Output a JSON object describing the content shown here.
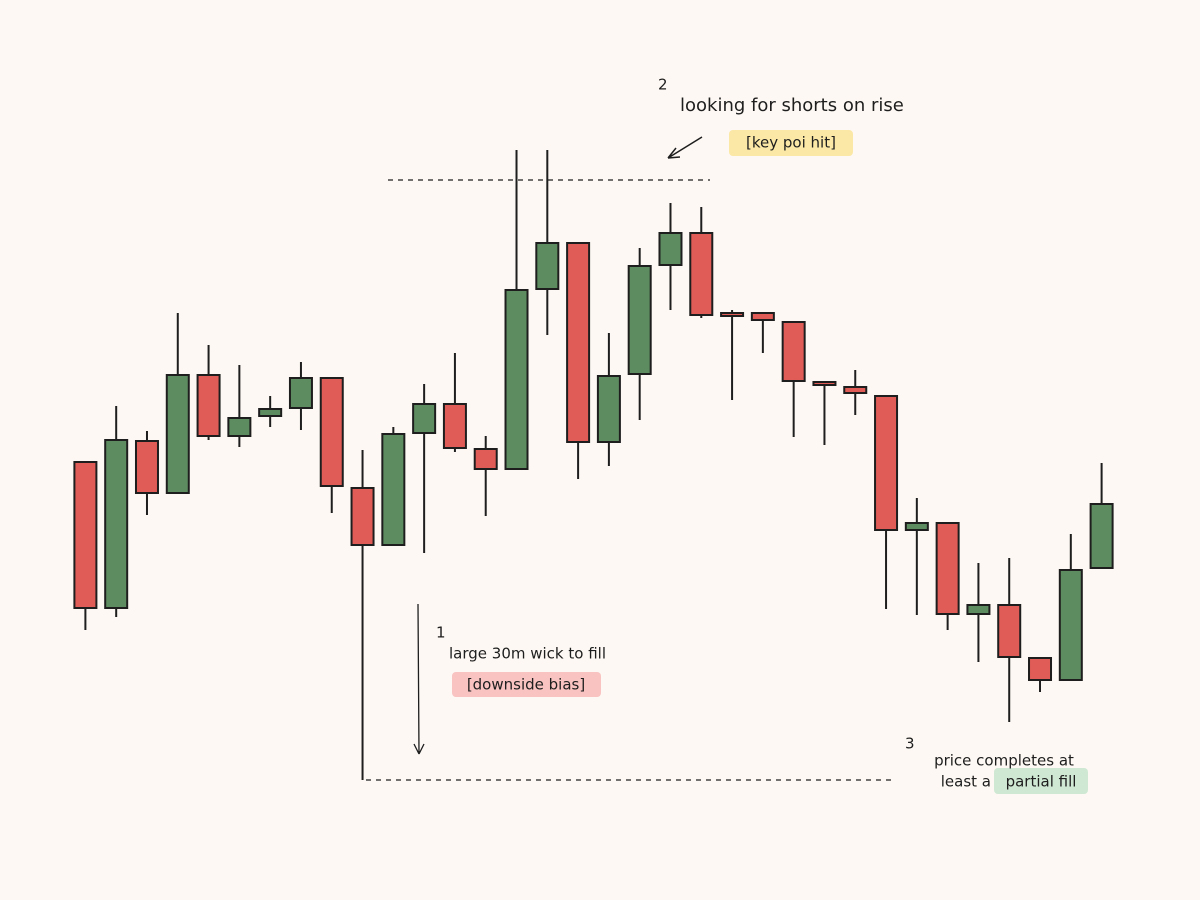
{
  "chart_data": {
    "type": "candlestick",
    "categories": [
      null,
      null,
      null,
      null,
      null,
      null,
      null,
      null,
      null,
      null,
      null,
      null,
      null,
      null,
      null,
      null,
      null,
      null,
      null,
      null,
      null,
      null,
      null,
      null,
      null,
      null,
      null,
      null,
      null,
      null,
      null,
      null,
      null,
      null
    ],
    "open": [
      438,
      292,
      459,
      407,
      525,
      464,
      484,
      492,
      522,
      412,
      355,
      467,
      496,
      451,
      431,
      611,
      657,
      458,
      526,
      635,
      667,
      587,
      587,
      578,
      518,
      513,
      504,
      370,
      377,
      286,
      295,
      242,
      220,
      332
    ],
    "high": [
      438,
      494,
      469,
      587,
      555,
      535,
      504,
      538,
      522,
      450,
      473,
      516,
      547,
      464,
      750,
      750,
      657,
      567,
      652,
      697,
      693,
      590,
      587,
      578,
      518,
      530,
      504,
      402,
      377,
      337,
      342,
      242,
      366,
      437
    ],
    "low": [
      270,
      283,
      385,
      407,
      460,
      453,
      473,
      470,
      387,
      120,
      355,
      347,
      448,
      384,
      431,
      565,
      421,
      434,
      480,
      590,
      582,
      500,
      547,
      463,
      455,
      485,
      291,
      285,
      270,
      238,
      178,
      208,
      220,
      332
    ],
    "close": [
      292,
      460,
      407,
      525,
      464,
      482,
      491,
      522,
      414,
      355,
      466,
      496,
      452,
      431,
      610,
      657,
      458,
      524,
      634,
      667,
      585,
      584,
      580,
      519,
      515,
      507,
      370,
      377,
      286,
      295,
      243,
      220,
      330,
      396
    ],
    "up_color": "#5e8c61",
    "down_color": "#e05c57",
    "ylim": [
      0,
      900
    ],
    "annotations": {
      "shorts": {
        "number": "2",
        "text": "looking for shorts on rise",
        "tag": "[key poi hit]"
      },
      "wick": {
        "number": "1",
        "text": "large 30m wick to fill",
        "tag": "[downside bias]"
      },
      "fill": {
        "number": "3",
        "line1": "price completes at",
        "line2": "least a",
        "highlight": "partial fill"
      }
    }
  }
}
